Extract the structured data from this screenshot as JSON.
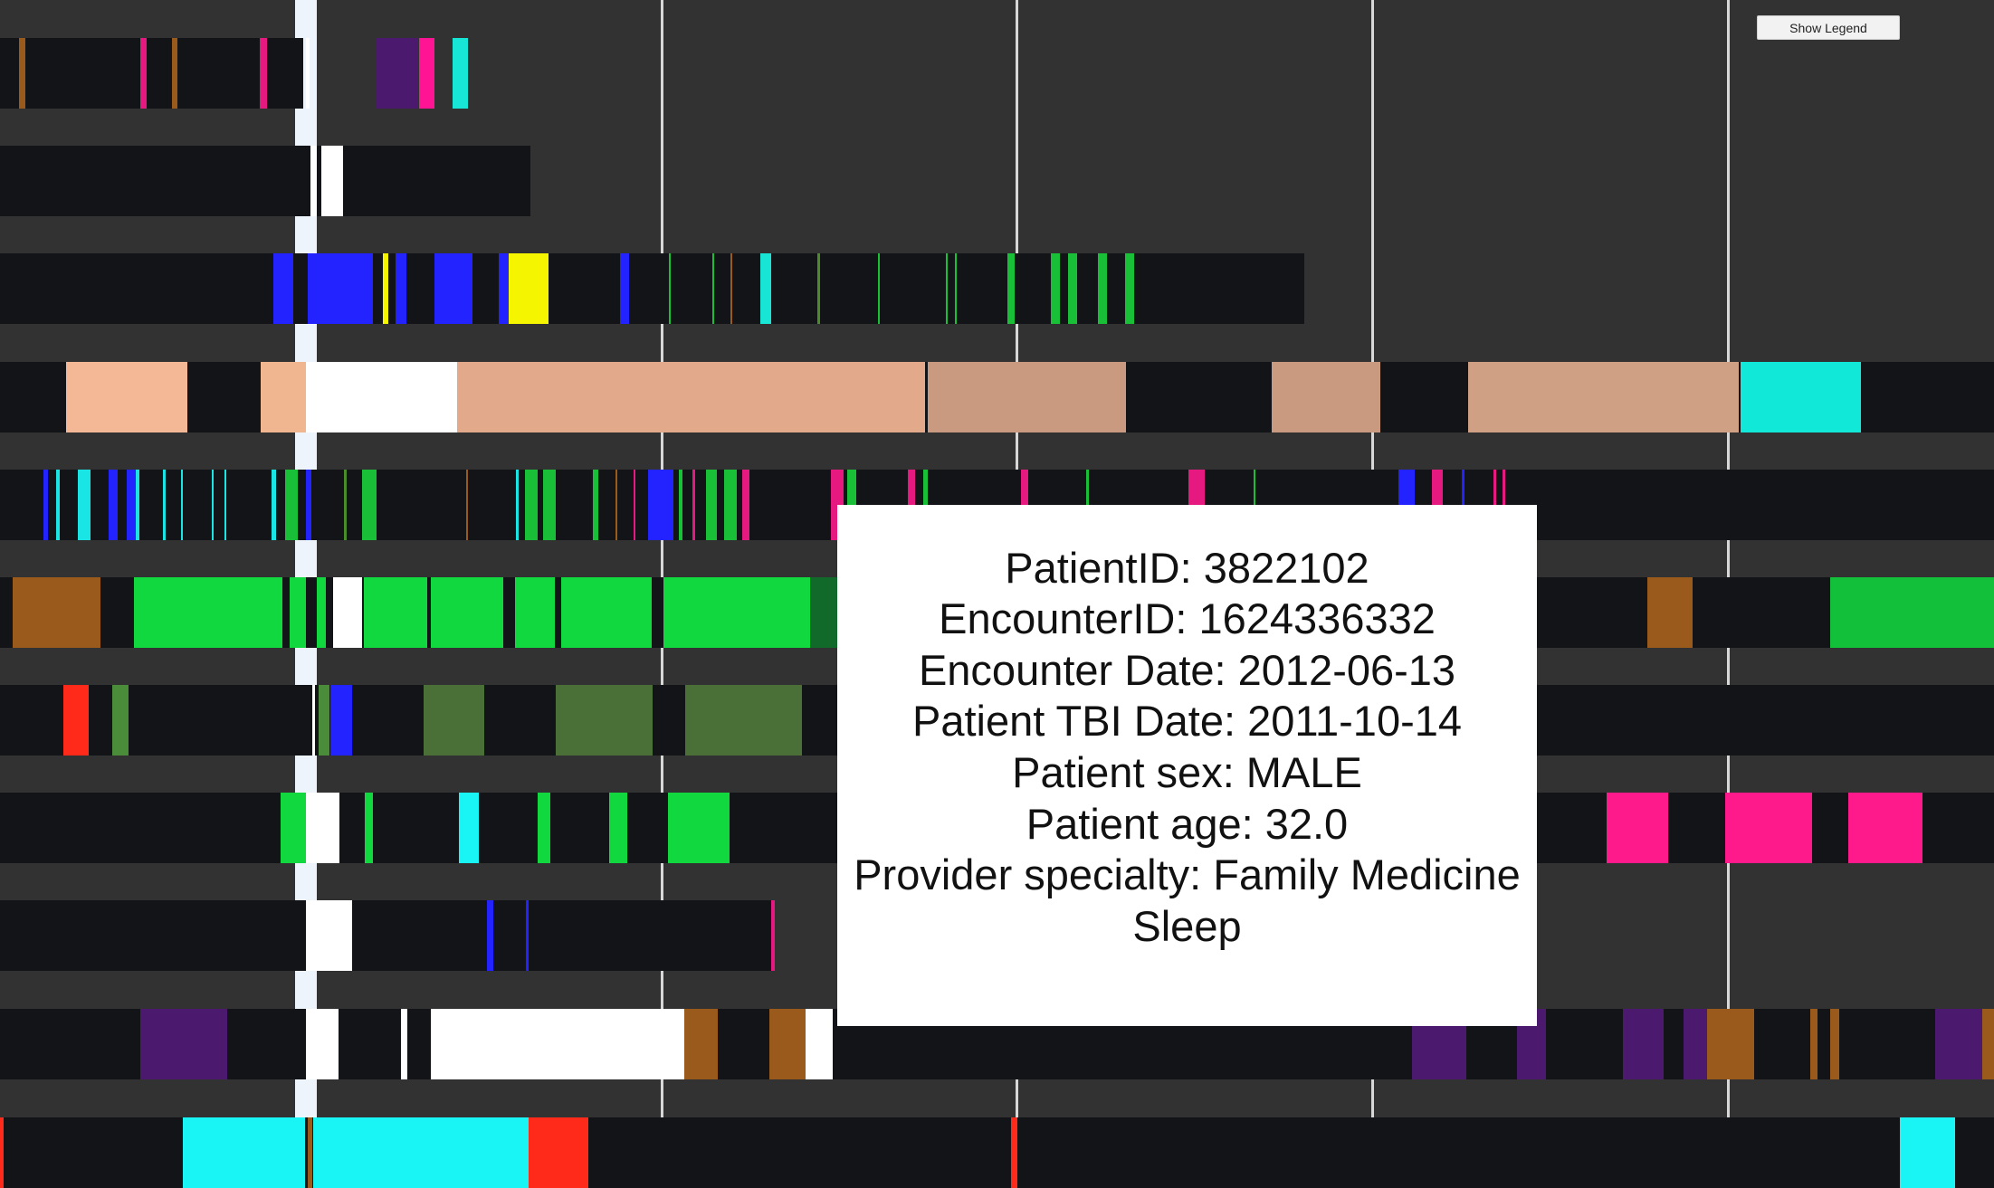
{
  "legend_button": {
    "label": "Show Legend"
  },
  "tooltip": {
    "lines": [
      "PatientID: 3822102",
      "EncounterID: 1624336332",
      "Encounter Date: 2012-06-13",
      "Patient TBI Date: 2011-10-14",
      "Patient sex: MALE",
      "Patient age: 32.0",
      "Provider specialty: Family Medicine",
      "Sleep"
    ]
  },
  "colors": {
    "background": "#323232",
    "lane_background": "#131417",
    "gridline": "#d8d8d8",
    "today_marker": "#eef4fb",
    "tooltip_background": "#ffffff"
  }
}
